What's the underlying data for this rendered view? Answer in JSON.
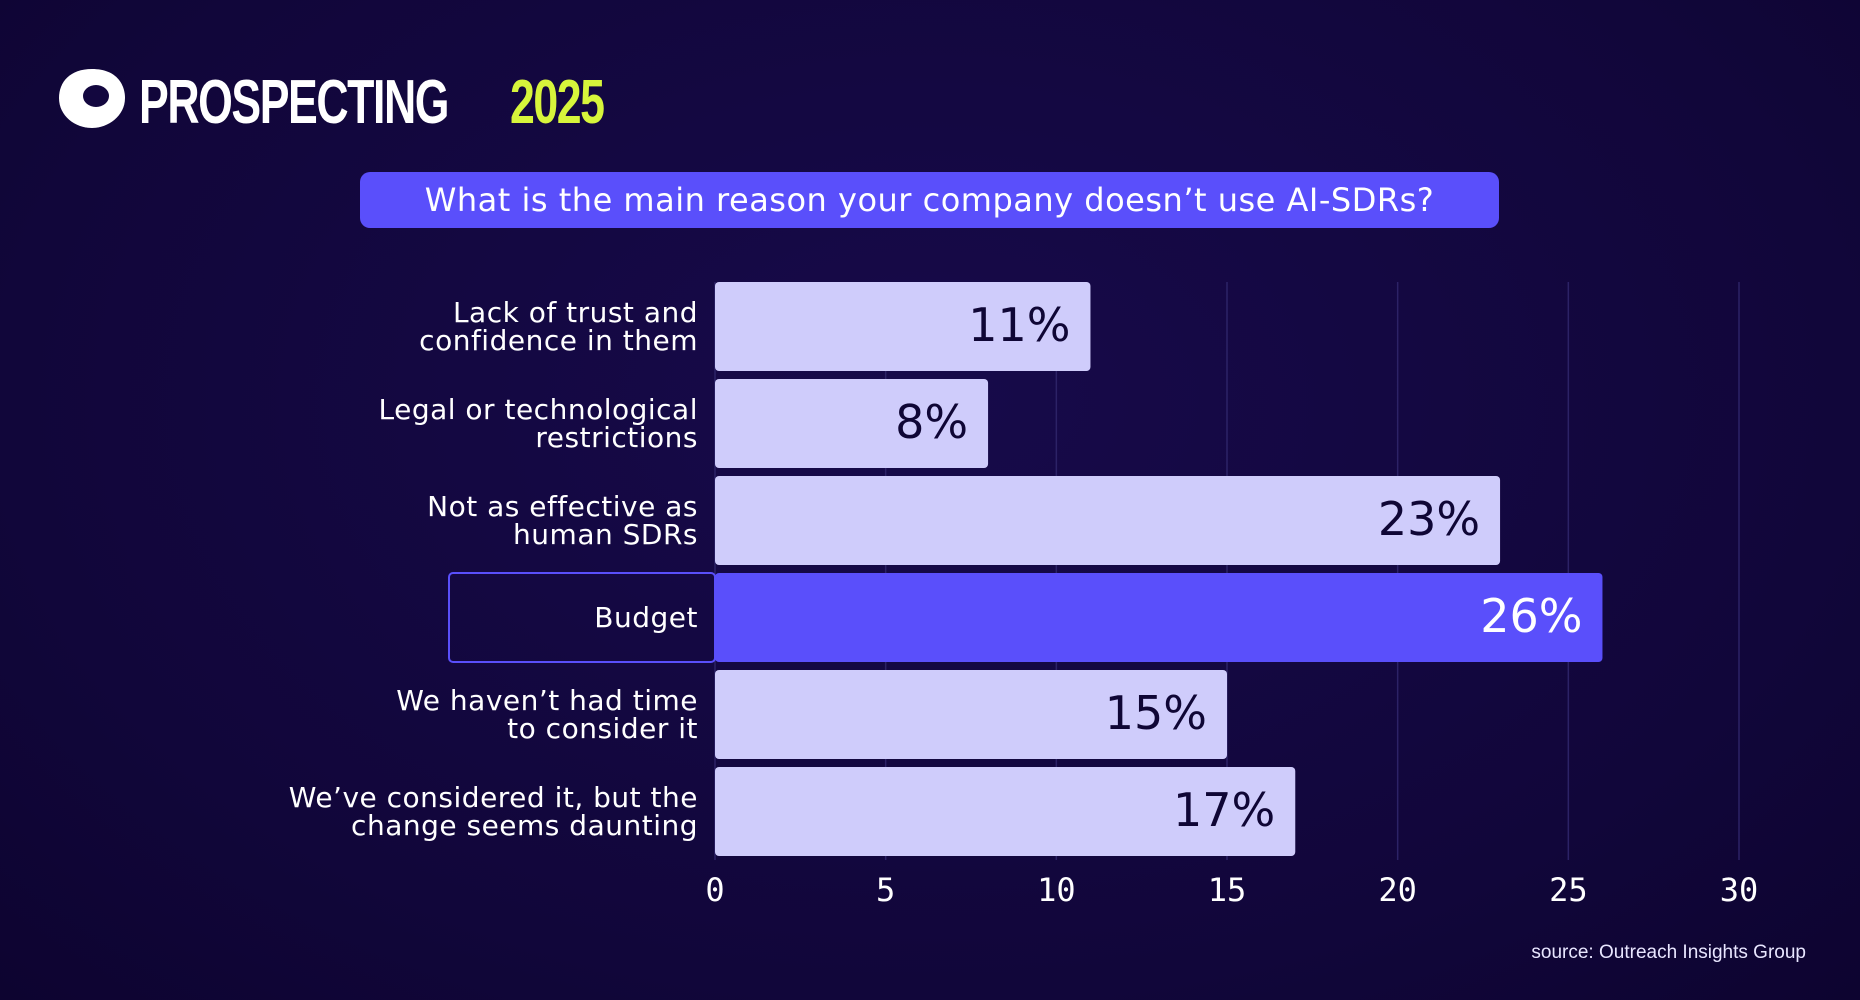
{
  "brand": {
    "name": "PROSPECTING",
    "year": "2025"
  },
  "chart_data": {
    "type": "bar",
    "orientation": "horizontal",
    "title": "What is the main reason your company doesn’t use AI-SDRs?",
    "categories": [
      "Lack of trust and\nconfidence in them",
      "Legal or technological\nrestrictions",
      "Not as effective as\nhuman SDRs",
      "Budget",
      "We haven’t had time\nto consider it",
      "We’ve considered it, but the\nchange seems daunting"
    ],
    "values": [
      11,
      8,
      23,
      26,
      15,
      17
    ],
    "value_labels": [
      "11%",
      "8%",
      "23%",
      "26%",
      "15%",
      "17%"
    ],
    "colors": [
      "#cfccfb",
      "#cfccfb",
      "#cfccfb",
      "#5a4ffb",
      "#cfccfb",
      "#cfccfb"
    ],
    "label_colors": [
      "#0f0635",
      "#0f0635",
      "#0f0635",
      "#ffffff",
      "#0f0635",
      "#0f0635"
    ],
    "outlined": [
      false,
      false,
      false,
      true,
      false,
      false
    ],
    "xlim": [
      0,
      30
    ],
    "xticks": [
      0,
      5,
      10,
      15,
      20,
      25,
      30
    ],
    "grid": true,
    "source": "source: Outreach Insights Group"
  }
}
